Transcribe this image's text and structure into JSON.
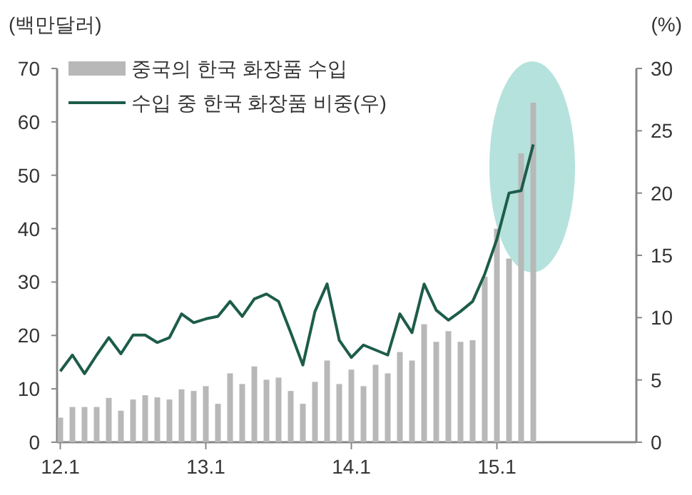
{
  "chart_data": {
    "type": "bar",
    "ylabel": "(백만달러)",
    "y2label": "(%)",
    "categories": [
      "12.1",
      null,
      null,
      null,
      null,
      null,
      null,
      null,
      null,
      null,
      null,
      null,
      "13.1",
      null,
      null,
      null,
      null,
      null,
      null,
      null,
      null,
      null,
      null,
      null,
      "14.1",
      null,
      null,
      null,
      null,
      null,
      null,
      null,
      null,
      null,
      null,
      null,
      "15.1",
      null,
      null,
      null,
      null,
      null,
      null,
      null,
      null,
      null,
      null,
      null
    ],
    "series": [
      {
        "name": "중국의 한국 화장품 수입",
        "color": "#b8b8b8",
        "values": [
          4.6,
          6.6,
          6.6,
          6.6,
          8.3,
          5.9,
          8.0,
          8.8,
          8.4,
          8.0,
          9.9,
          9.6,
          10.5,
          7.2,
          12.9,
          10.9,
          14.2,
          11.7,
          12.1,
          9.6,
          7.2,
          11.3,
          15.3,
          10.9,
          13.6,
          10.5,
          14.5,
          12.9,
          16.9,
          15.3,
          22.1,
          18.8,
          20.8,
          18.8,
          19.1,
          31.0,
          40.0,
          34.4,
          54.1,
          63.6,
          null,
          null,
          null,
          null,
          null,
          null,
          null,
          null
        ]
      },
      {
        "name": "수입 중 한국 화장품 비중(우)",
        "type": "line",
        "axis": "y2",
        "color": "#1d5c4a",
        "values": [
          5.7,
          7.0,
          5.5,
          7.0,
          8.4,
          7.1,
          8.6,
          8.6,
          8.0,
          8.4,
          10.3,
          9.6,
          9.9,
          10.1,
          11.3,
          10.1,
          11.5,
          11.9,
          11.3,
          8.8,
          6.2,
          10.5,
          12.7,
          8.2,
          6.8,
          7.8,
          7.4,
          7.0,
          10.3,
          8.8,
          12.7,
          10.6,
          9.8,
          10.5,
          11.3,
          13.5,
          16.3,
          20.0,
          20.2,
          23.9,
          null,
          null,
          null,
          null,
          null,
          null,
          null,
          null
        ]
      }
    ],
    "ylim": [
      0,
      70
    ],
    "yticks": [
      0,
      10,
      20,
      30,
      40,
      50,
      60,
      70
    ],
    "y2lim": [
      0,
      30
    ],
    "y2ticks": [
      0,
      5,
      10,
      15,
      20,
      25,
      30
    ],
    "legend": "top left"
  }
}
